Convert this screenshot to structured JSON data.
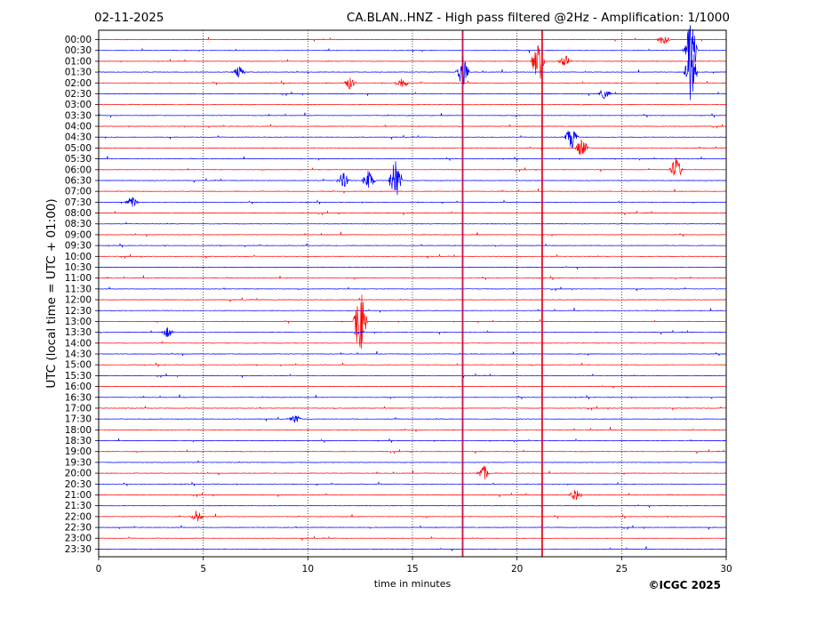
{
  "header": {
    "date": "02-11-2025",
    "title": "CA.BLAN..HNZ - High pass filtered @2Hz - Amplification: 1/1000"
  },
  "footer": {
    "copyright": "©ICGC 2025"
  },
  "colors": {
    "odd_trace": "#ff0000",
    "even_trace": "#0000ff",
    "grid": "#000000"
  },
  "chart_data": {
    "type": "line",
    "subtype": "helicorder",
    "xlabel": "time in minutes",
    "ylabel": "UTC (local time = UTC + 01:00)",
    "xlim": [
      0,
      30
    ],
    "x_ticks": [
      0,
      5,
      10,
      15,
      20,
      25,
      30
    ],
    "grid": "vertical dotted lines at 5-minute intervals",
    "rows": [
      "00:00",
      "00:30",
      "01:00",
      "01:30",
      "02:00",
      "02:30",
      "03:00",
      "03:30",
      "04:00",
      "04:30",
      "05:00",
      "05:30",
      "06:00",
      "06:30",
      "07:00",
      "07:30",
      "08:00",
      "08:30",
      "09:00",
      "09:30",
      "10:00",
      "10:30",
      "11:00",
      "11:30",
      "12:00",
      "12:30",
      "13:00",
      "13:30",
      "14:00",
      "14:30",
      "15:00",
      "15:30",
      "16:00",
      "16:30",
      "17:00",
      "17:30",
      "18:00",
      "18:30",
      "19:00",
      "19:30",
      "20:00",
      "20:30",
      "21:00",
      "21:30",
      "22:00",
      "22:30",
      "23:00",
      "23:30"
    ],
    "trace_colors_alternating": [
      "#ff0000",
      "#0000ff"
    ],
    "events": [
      {
        "row": "00:00",
        "minute": 27.0,
        "amp": 0.5
      },
      {
        "row": "00:30",
        "minute": 28.3,
        "amp": 3.0
      },
      {
        "row": "01:00",
        "minute": 22.3,
        "amp": 0.6
      },
      {
        "row": "01:00",
        "minute": 21.0,
        "amp": 2.5
      },
      {
        "row": "01:30",
        "minute": 17.4,
        "amp": 1.5
      },
      {
        "row": "01:30",
        "minute": 6.7,
        "amp": 0.6
      },
      {
        "row": "01:30",
        "minute": 28.3,
        "amp": 3.0
      },
      {
        "row": "02:00",
        "minute": 12.0,
        "amp": 0.6
      },
      {
        "row": "02:00",
        "minute": 14.5,
        "amp": 0.6
      },
      {
        "row": "02:30",
        "minute": 24.2,
        "amp": 0.5
      },
      {
        "row": "04:30",
        "minute": 22.6,
        "amp": 1.2
      },
      {
        "row": "05:00",
        "minute": 23.1,
        "amp": 1.0
      },
      {
        "row": "06:00",
        "minute": 27.6,
        "amp": 1.2
      },
      {
        "row": "06:30",
        "minute": 11.7,
        "amp": 0.8
      },
      {
        "row": "06:30",
        "minute": 12.9,
        "amp": 1.0
      },
      {
        "row": "06:30",
        "minute": 14.2,
        "amp": 2.5
      },
      {
        "row": "07:30",
        "minute": 1.6,
        "amp": 0.6
      },
      {
        "row": "13:00",
        "minute": 12.5,
        "amp": 3.5
      },
      {
        "row": "13:30",
        "minute": 3.3,
        "amp": 0.5
      },
      {
        "row": "17:30",
        "minute": 9.4,
        "amp": 0.4
      },
      {
        "row": "20:00",
        "minute": 18.4,
        "amp": 0.8
      },
      {
        "row": "21:00",
        "minute": 22.8,
        "amp": 0.6
      },
      {
        "row": "22:00",
        "minute": 4.7,
        "amp": 0.5
      }
    ],
    "continuous_spikes_minutes": [
      17.4,
      21.2
    ]
  }
}
